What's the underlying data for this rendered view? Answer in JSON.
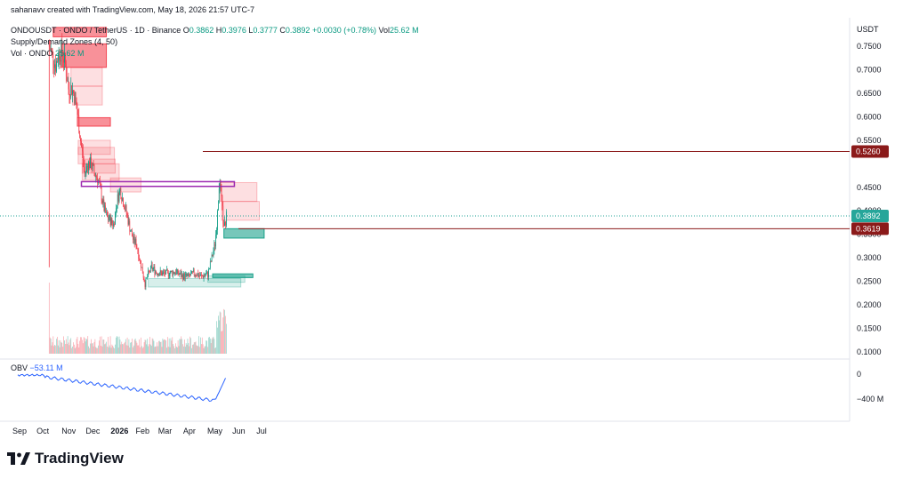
{
  "header": {
    "creator": "sahanavv created with TradingView.com, May 18, 2026 21:57 UTC-7",
    "symbol": "ONDOUSDT · ONDO / TetherUS · 1D · Binance",
    "ohlc": {
      "o_label": "O",
      "o": "0.3862",
      "h_label": "H",
      "h": "0.3976",
      "l_label": "L",
      "l": "0.3777",
      "c_label": "C",
      "c": "0.3892",
      "change": "+0.0030 (+0.78%)",
      "vol_label": "Vol",
      "vol": "25.62 M"
    },
    "indicator1": "Supply/Demand Zones (4, 50)",
    "indicator2_label": "Vol · ONDO",
    "indicator2_value": "25.62 M"
  },
  "currency": "USDT",
  "obv": {
    "label": "OBV",
    "value": "−53.11 M",
    "ticks": [
      "0",
      "−400 M"
    ]
  },
  "brand": "TradingView",
  "colors": {
    "up": "#089981",
    "down": "#f23645",
    "supply": "#f23645",
    "demand": "#089981",
    "purple": "#9c27b0",
    "tag": "#8b1a1a",
    "last": "#26a69a",
    "obv": "#2962ff"
  },
  "chart_data": {
    "type": "candlestick",
    "y_axis_ticks": [
      "0.7500",
      "0.7000",
      "0.6500",
      "0.6000",
      "0.5500",
      "0.4500",
      "0.4000",
      "0.3500",
      "0.3000",
      "0.2500",
      "0.2000",
      "0.1500",
      "0.1000"
    ],
    "x_axis_ticks": [
      "Sep",
      "Oct",
      "Nov",
      "Dec",
      "2026",
      "Feb",
      "Mar",
      "Apr",
      "May",
      "Jun",
      "Jul"
    ],
    "ylim": [
      0.1,
      0.78
    ],
    "horizontal_levels": [
      {
        "value": 0.526,
        "label": "0.5260",
        "color": "#8b1a1a"
      },
      {
        "value": 0.3619,
        "label": "0.3619",
        "color": "#8b1a1a"
      }
    ],
    "last_price": {
      "value": 0.3892,
      "label": "0.3892"
    },
    "zones": [
      {
        "kind": "supply",
        "strong": true,
        "x0": "2025-10-15",
        "x1": "2025-12-20",
        "y0": 0.77,
        "y1": 0.79
      },
      {
        "kind": "supply",
        "strong": true,
        "x0": "2025-10-25",
        "x1": "2025-12-20",
        "y0": 0.705,
        "y1": 0.755
      },
      {
        "kind": "supply",
        "strong": false,
        "x0": "2025-11-06",
        "x1": "2025-12-15",
        "y0": 0.665,
        "y1": 0.705
      },
      {
        "kind": "supply",
        "strong": false,
        "x0": "2025-11-08",
        "x1": "2025-12-15",
        "y0": 0.625,
        "y1": 0.665
      },
      {
        "kind": "supply",
        "strong": true,
        "x0": "2025-11-14",
        "x1": "2025-12-25",
        "y0": 0.58,
        "y1": 0.598
      },
      {
        "kind": "supply",
        "strong": false,
        "x0": "2025-11-15",
        "x1": "2025-12-25",
        "y0": 0.52,
        "y1": 0.55
      },
      {
        "kind": "supply",
        "strong": false,
        "x0": "2025-11-15",
        "x1": "2025-12-30",
        "y0": 0.5,
        "y1": 0.535
      },
      {
        "kind": "supply",
        "strong": false,
        "x0": "2025-11-20",
        "x1": "2025-12-31",
        "y0": 0.48,
        "y1": 0.51
      },
      {
        "kind": "supply",
        "strong": false,
        "x0": "2025-11-20",
        "x1": "2026-01-05",
        "y0": 0.465,
        "y1": 0.5
      },
      {
        "kind": "supply",
        "strong": false,
        "x0": "2025-12-25",
        "x1": "2026-02-01",
        "y0": 0.44,
        "y1": 0.47
      },
      {
        "kind": "supply",
        "strong": false,
        "x0": "2026-05-10",
        "x1": "2026-06-25",
        "y0": 0.42,
        "y1": 0.46
      },
      {
        "kind": "supply",
        "strong": false,
        "x0": "2026-05-12",
        "x1": "2026-06-28",
        "y0": 0.38,
        "y1": 0.42
      },
      {
        "kind": "demand",
        "strong": true,
        "x0": "2026-05-15",
        "x1": "2026-07-04",
        "y0": 0.342,
        "y1": 0.362
      },
      {
        "kind": "demand",
        "strong": true,
        "x0": "2026-05-01",
        "x1": "2026-06-20",
        "y0": 0.258,
        "y1": 0.266
      },
      {
        "kind": "demand",
        "strong": false,
        "x0": "2026-04-25",
        "x1": "2026-06-10",
        "y0": 0.248,
        "y1": 0.262
      },
      {
        "kind": "demand",
        "strong": false,
        "x0": "2026-02-10",
        "x1": "2026-06-05",
        "y0": 0.238,
        "y1": 0.256
      }
    ],
    "purple_box": {
      "x0": "2025-11-19",
      "x1": "2026-05-28",
      "y0": 0.452,
      "y1": 0.462
    },
    "close_series": [
      {
        "date": "2025-10-10",
        "close": 0.752
      },
      {
        "date": "2025-10-14",
        "close": 0.73
      },
      {
        "date": "2025-10-18",
        "close": 0.71
      },
      {
        "date": "2025-10-22",
        "close": 0.735
      },
      {
        "date": "2025-10-26",
        "close": 0.74
      },
      {
        "date": "2025-10-30",
        "close": 0.71
      },
      {
        "date": "2025-11-03",
        "close": 0.66
      },
      {
        "date": "2025-11-07",
        "close": 0.66
      },
      {
        "date": "2025-11-11",
        "close": 0.64
      },
      {
        "date": "2025-11-15",
        "close": 0.595
      },
      {
        "date": "2025-11-19",
        "close": 0.535
      },
      {
        "date": "2025-11-23",
        "close": 0.48
      },
      {
        "date": "2025-11-27",
        "close": 0.5
      },
      {
        "date": "2025-12-01",
        "close": 0.5
      },
      {
        "date": "2025-12-05",
        "close": 0.48
      },
      {
        "date": "2025-12-09",
        "close": 0.47
      },
      {
        "date": "2025-12-13",
        "close": 0.44
      },
      {
        "date": "2025-12-17",
        "close": 0.405
      },
      {
        "date": "2025-12-21",
        "close": 0.385
      },
      {
        "date": "2025-12-25",
        "close": 0.38
      },
      {
        "date": "2025-12-29",
        "close": 0.37
      },
      {
        "date": "2026-01-02",
        "close": 0.42
      },
      {
        "date": "2026-01-06",
        "close": 0.445
      },
      {
        "date": "2026-01-10",
        "close": 0.42
      },
      {
        "date": "2026-01-14",
        "close": 0.395
      },
      {
        "date": "2026-01-18",
        "close": 0.365
      },
      {
        "date": "2026-01-22",
        "close": 0.34
      },
      {
        "date": "2026-01-26",
        "close": 0.33
      },
      {
        "date": "2026-01-30",
        "close": 0.3
      },
      {
        "date": "2026-02-03",
        "close": 0.27
      },
      {
        "date": "2026-02-06",
        "close": 0.245
      },
      {
        "date": "2026-02-10",
        "close": 0.265
      },
      {
        "date": "2026-02-14",
        "close": 0.28
      },
      {
        "date": "2026-02-20",
        "close": 0.27
      },
      {
        "date": "2026-02-28",
        "close": 0.266
      },
      {
        "date": "2026-03-08",
        "close": 0.268
      },
      {
        "date": "2026-03-16",
        "close": 0.27
      },
      {
        "date": "2026-03-24",
        "close": 0.262
      },
      {
        "date": "2026-04-01",
        "close": 0.26
      },
      {
        "date": "2026-04-09",
        "close": 0.268
      },
      {
        "date": "2026-04-17",
        "close": 0.26
      },
      {
        "date": "2026-04-25",
        "close": 0.265
      },
      {
        "date": "2026-04-30",
        "close": 0.3
      },
      {
        "date": "2026-05-04",
        "close": 0.33
      },
      {
        "date": "2026-05-07",
        "close": 0.39
      },
      {
        "date": "2026-05-09",
        "close": 0.46
      },
      {
        "date": "2026-05-11",
        "close": 0.44
      },
      {
        "date": "2026-05-13",
        "close": 0.4
      },
      {
        "date": "2026-05-15",
        "close": 0.36
      },
      {
        "date": "2026-05-17",
        "close": 0.375
      },
      {
        "date": "2026-05-18",
        "close": 0.3892
      }
    ]
  }
}
